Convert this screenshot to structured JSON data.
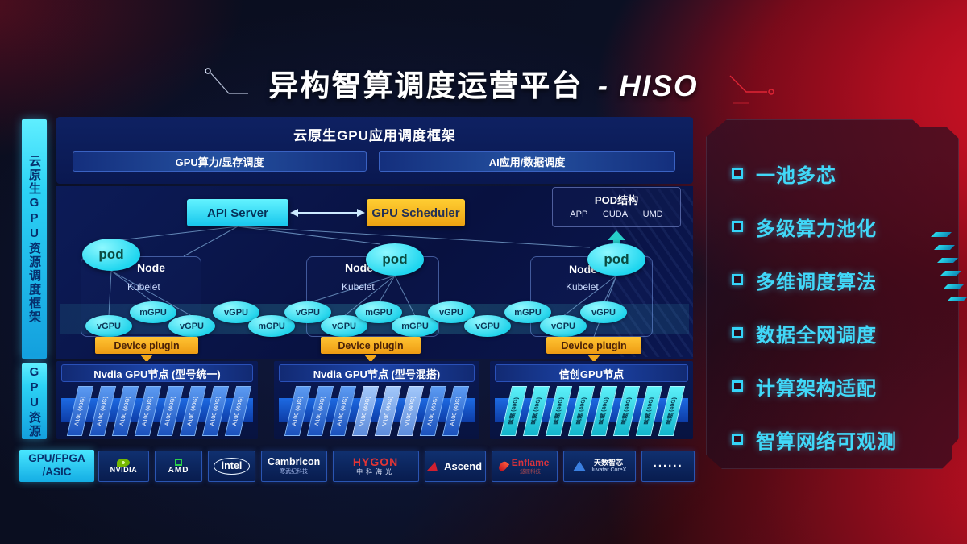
{
  "title": {
    "main": "异构智算调度运营平台",
    "suffix": "- HISO"
  },
  "sidebar": {
    "framework": "云原生GPU资源调度框架",
    "resource": "GPU资源",
    "hardware_line1": "GPU/FPGA",
    "hardware_line2": "/ASIC"
  },
  "app_framework": {
    "title": "云原生GPU应用调度框架",
    "left_bar": "GPU算力/显存调度",
    "right_bar": "AI应用/数据调度"
  },
  "control": {
    "api_server": "API Server",
    "gpu_scheduler": "GPU Scheduler",
    "pod_box": {
      "title": "POD结构",
      "items": [
        "APP",
        "CUDA",
        "UMD"
      ]
    }
  },
  "cluster": {
    "pod_label": "pod",
    "node_label": "Node",
    "kubelet_label": "Kubelet",
    "device_plugin_label": "Device plugin",
    "gpu_units": [
      "vGPU",
      "mGPU",
      "vGPU",
      "vGPU",
      "mGPU",
      "vGPU",
      "vGPU",
      "mGPU",
      "mGPU",
      "vGPU",
      "vGPU",
      "mGPU",
      "vGPU",
      "vGPU"
    ]
  },
  "gpu_groups": [
    {
      "title": "Nvdia GPU节点 (型号统一)",
      "cards": [
        {
          "label": "A100 (40G)",
          "style": "blue"
        },
        {
          "label": "A100 (40G)",
          "style": "blue"
        },
        {
          "label": "A100 (40G)",
          "style": "blue"
        },
        {
          "label": "A100 (40G)",
          "style": "blue"
        },
        {
          "label": "A100 (40G)",
          "style": "blue"
        },
        {
          "label": "A100 (40G)",
          "style": "blue"
        },
        {
          "label": "A100 (40G)",
          "style": "blue"
        },
        {
          "label": "A100 (40G)",
          "style": "blue"
        }
      ]
    },
    {
      "title": "Nvdia GPU节点 (型号混搭)",
      "cards": [
        {
          "label": "A100 (40G)",
          "style": "blue"
        },
        {
          "label": "A100 (40G)",
          "style": "blue"
        },
        {
          "label": "A100 (40G)",
          "style": "blue"
        },
        {
          "label": "V100 (40G)",
          "style": "light"
        },
        {
          "label": "V100 (40G)",
          "style": "light"
        },
        {
          "label": "V100 (40G)",
          "style": "light"
        },
        {
          "label": "A100 (40G)",
          "style": "blue"
        },
        {
          "label": "A100 (40G)",
          "style": "blue"
        }
      ]
    },
    {
      "title": "信创GPU节点",
      "cards": [
        {
          "label": "昇腾 (40G)",
          "style": "cyan"
        },
        {
          "label": "昇腾 (40G)",
          "style": "cyan"
        },
        {
          "label": "昇腾 (40G)",
          "style": "cyan"
        },
        {
          "label": "昇腾 (40G)",
          "style": "cyan"
        },
        {
          "label": "昇腾 (40G)",
          "style": "cyan"
        },
        {
          "label": "昇腾 (40G)",
          "style": "cyan"
        },
        {
          "label": "昇腾 (40G)",
          "style": "cyan"
        },
        {
          "label": "昇腾 (40G)",
          "style": "cyan"
        }
      ]
    }
  ],
  "vendors": [
    {
      "type": "nvidia",
      "label": "NVIDIA"
    },
    {
      "type": "amd",
      "label": "AMD"
    },
    {
      "type": "intel",
      "label": "intel"
    },
    {
      "type": "cambricon",
      "label": "Cambricon",
      "sub": "寒武纪科技"
    },
    {
      "type": "hygon",
      "label": "HYGON",
      "sub": "中科海光"
    },
    {
      "type": "ascend",
      "label": "Ascend"
    },
    {
      "type": "enflame",
      "label": "Enflame",
      "sub": "燧原科技"
    },
    {
      "type": "iluvatar",
      "label": "天数智芯",
      "sub": "Iluvatar CoreX"
    },
    {
      "type": "dots",
      "label": "......"
    }
  ],
  "features": [
    "一池多芯",
    "多级算力池化",
    "多维调度算法",
    "数据全网调度",
    "计算架构适配",
    "智算网络可观测"
  ],
  "colors": {
    "cyan": "#2ee6f7",
    "amber": "#f5b517",
    "panel_navy": "#0a1747",
    "red": "#c01020",
    "feature_cyan": "#41d8f8"
  }
}
